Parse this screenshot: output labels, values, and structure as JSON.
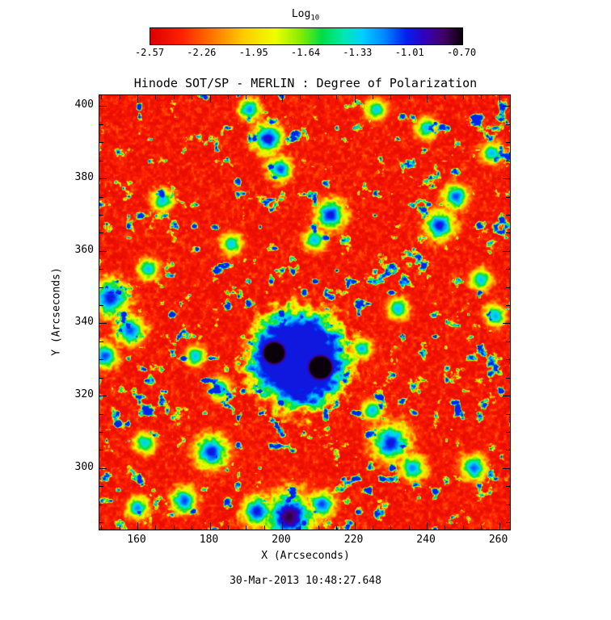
{
  "title": "Hinode SOT/SP - MERLIN : Degree of Polarization",
  "timestamp": "30-Mar-2013 10:48:27.648",
  "colorbar": {
    "title": "Log",
    "title_sub": "10",
    "tick_labels": [
      "-2.57",
      "-2.26",
      "-1.95",
      "-1.64",
      "-1.33",
      "-1.01",
      "-0.70"
    ]
  },
  "axes": {
    "xlabel": "X (Arcseconds)",
    "ylabel": "Y (Arcseconds)"
  },
  "chart_data": {
    "type": "heatmap",
    "title": "Hinode SOT/SP - MERLIN : Degree of Polarization",
    "xlabel": "X (Arcseconds)",
    "ylabel": "Y (Arcseconds)",
    "xlim": [
      149.5,
      263
    ],
    "ylim": [
      283,
      403
    ],
    "x_major_ticks": [
      160,
      180,
      200,
      220,
      240,
      260
    ],
    "y_major_ticks": [
      300,
      320,
      340,
      360,
      380,
      400
    ],
    "minor_tick_interval": 5,
    "major_tick_interval": 20,
    "colorbar": {
      "label": "Log10",
      "ticks": [
        -2.57,
        -2.26,
        -1.95,
        -1.64,
        -1.33,
        -1.01,
        -0.7
      ],
      "range": [
        -2.57,
        -0.7
      ]
    },
    "description": "Log10 degree-of-polarization map. Quiet sun ~ -2.57 (red) over most of the field; magnetic network lanes -2.0 to -1.3 (green/cyan/blue); a sunspot pair near (204,330) arcsec reaches -0.70 (purple/black umbrae) surrounded by a blue penumbral halo with radial spikes; a strong blue-purple plage patch sits at the bottom edge near (202,286).",
    "colormap_stops": [
      {
        "t": 0.0,
        "c": "#dd0000"
      },
      {
        "t": 0.1,
        "c": "#ff2200"
      },
      {
        "t": 0.2,
        "c": "#ff7700"
      },
      {
        "t": 0.3,
        "c": "#ffcc00"
      },
      {
        "t": 0.4,
        "c": "#eeff00"
      },
      {
        "t": 0.48,
        "c": "#88ee00"
      },
      {
        "t": 0.55,
        "c": "#00dd44"
      },
      {
        "t": 0.62,
        "c": "#00e8b0"
      },
      {
        "t": 0.68,
        "c": "#00d0ff"
      },
      {
        "t": 0.75,
        "c": "#0088ff"
      },
      {
        "t": 0.82,
        "c": "#0022ee"
      },
      {
        "t": 0.88,
        "c": "#3300bb"
      },
      {
        "t": 0.94,
        "c": "#44006a"
      },
      {
        "t": 1.0,
        "c": "#0a000a"
      }
    ],
    "features": {
      "sunspot_umbrae": [
        {
          "x": 197.8,
          "y": 331.8,
          "r": 5.2,
          "i": 1.35
        },
        {
          "x": 210.6,
          "y": 327.8,
          "r": 5.6,
          "i": 1.35
        }
      ],
      "sunspot_halo": {
        "x": 204.5,
        "y": 330,
        "r": 12,
        "i": 0.84
      },
      "hotspots": [
        {
          "x": 202,
          "y": 286.5,
          "r": 6.5,
          "i": 0.97
        },
        {
          "x": 193,
          "y": 288,
          "r": 4,
          "i": 0.85
        },
        {
          "x": 211,
          "y": 290,
          "r": 3.5,
          "i": 0.8
        },
        {
          "x": 180.5,
          "y": 304.5,
          "r": 4.5,
          "i": 0.85
        },
        {
          "x": 173,
          "y": 291,
          "r": 3.5,
          "i": 0.8
        },
        {
          "x": 160,
          "y": 289,
          "r": 3,
          "i": 0.75
        },
        {
          "x": 152.5,
          "y": 347,
          "r": 5,
          "i": 0.85
        },
        {
          "x": 158,
          "y": 338,
          "r": 4,
          "i": 0.8
        },
        {
          "x": 151,
          "y": 331,
          "r": 3.5,
          "i": 0.8
        },
        {
          "x": 163,
          "y": 355,
          "r": 3,
          "i": 0.7
        },
        {
          "x": 196,
          "y": 391,
          "r": 4,
          "i": 0.88
        },
        {
          "x": 199.5,
          "y": 382.5,
          "r": 3.2,
          "i": 0.8
        },
        {
          "x": 191,
          "y": 399,
          "r": 3,
          "i": 0.75
        },
        {
          "x": 213.5,
          "y": 370,
          "r": 4,
          "i": 0.85
        },
        {
          "x": 209,
          "y": 363,
          "r": 3,
          "i": 0.7
        },
        {
          "x": 230,
          "y": 307,
          "r": 5,
          "i": 0.85
        },
        {
          "x": 236,
          "y": 300,
          "r": 3.5,
          "i": 0.75
        },
        {
          "x": 225,
          "y": 316,
          "r": 3,
          "i": 0.7
        },
        {
          "x": 243.5,
          "y": 367,
          "r": 4,
          "i": 0.85
        },
        {
          "x": 248,
          "y": 375,
          "r": 3.5,
          "i": 0.8
        },
        {
          "x": 255,
          "y": 352,
          "r": 3,
          "i": 0.7
        },
        {
          "x": 253,
          "y": 300,
          "r": 3.5,
          "i": 0.78
        },
        {
          "x": 259,
          "y": 342,
          "r": 3,
          "i": 0.72
        },
        {
          "x": 240,
          "y": 394,
          "r": 3,
          "i": 0.7
        },
        {
          "x": 226,
          "y": 399,
          "r": 3,
          "i": 0.68
        },
        {
          "x": 186,
          "y": 362,
          "r": 3,
          "i": 0.68
        },
        {
          "x": 167,
          "y": 374,
          "r": 3,
          "i": 0.7
        },
        {
          "x": 232,
          "y": 344,
          "r": 3,
          "i": 0.7
        },
        {
          "x": 222,
          "y": 333,
          "r": 2.8,
          "i": 0.72
        },
        {
          "x": 183,
          "y": 322,
          "r": 3,
          "i": 0.72
        },
        {
          "x": 176,
          "y": 331,
          "r": 2.8,
          "i": 0.7
        },
        {
          "x": 258,
          "y": 387,
          "r": 3,
          "i": 0.7
        },
        {
          "x": 162,
          "y": 307,
          "r": 3,
          "i": 0.68
        }
      ]
    },
    "noise": {
      "seed_network": 11,
      "seed_speckle": 23,
      "seed_ragged": 37,
      "network_scale": 0.33,
      "speckle_scale": 1.25,
      "regional_scale": 0.08,
      "lane_threshold": [
        0.615,
        0.78
      ],
      "lane_max": 0.82,
      "base_offset": 0.03,
      "base_amp": 0.18
    }
  }
}
